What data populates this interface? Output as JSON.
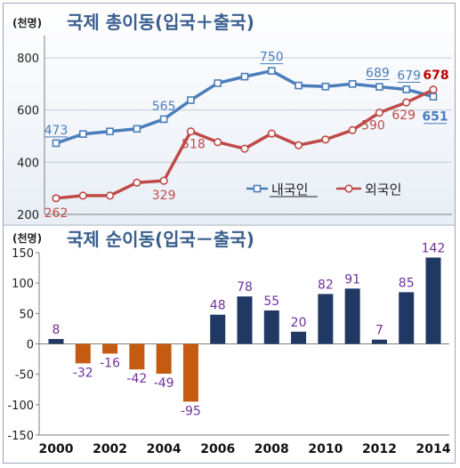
{
  "chart_data": [
    {
      "type": "line",
      "title": "국제 총이동(입국＋출국)",
      "unit_label": "(천명)",
      "x": [
        2000,
        2001,
        2002,
        2003,
        2004,
        2005,
        2006,
        2007,
        2008,
        2009,
        2010,
        2011,
        2012,
        2013,
        2014
      ],
      "ylim": [
        200,
        800
      ],
      "yticks": [
        200,
        400,
        600,
        800
      ],
      "grid": true,
      "legend_position": "lower-right",
      "series": [
        {
          "name": "내국인",
          "color": "#4a7ebb",
          "values": [
            473,
            508,
            518,
            528,
            565,
            638,
            703,
            728,
            750,
            694,
            690,
            700,
            689,
            679,
            651
          ],
          "labels": [
            {
              "index": 0,
              "text": "473"
            },
            {
              "index": 4,
              "text": "565"
            },
            {
              "index": 8,
              "text": "750"
            },
            {
              "index": 12,
              "text": "689"
            },
            {
              "index": 13,
              "text": "679"
            },
            {
              "index": 14,
              "text": "651"
            }
          ]
        },
        {
          "name": "외국인",
          "color": "#be4b48",
          "values": [
            262,
            272,
            272,
            322,
            329,
            518,
            477,
            452,
            510,
            465,
            487,
            523,
            590,
            629,
            678
          ],
          "labels": [
            {
              "index": 0,
              "text": "262"
            },
            {
              "index": 4,
              "text": "329"
            },
            {
              "index": 5,
              "text": "518"
            },
            {
              "index": 12,
              "text": "590"
            },
            {
              "index": 13,
              "text": "629"
            },
            {
              "index": 14,
              "text": "678"
            }
          ]
        }
      ]
    },
    {
      "type": "bar",
      "title": "국제 순이동(입국－출국)",
      "unit_label": "(천명)",
      "categories": [
        2000,
        2001,
        2002,
        2003,
        2004,
        2005,
        2006,
        2007,
        2008,
        2009,
        2010,
        2011,
        2012,
        2013,
        2014
      ],
      "values": [
        8,
        -32,
        -16,
        -42,
        -49,
        -95,
        48,
        78,
        55,
        20,
        82,
        91,
        7,
        85,
        142
      ],
      "ylim": [
        -150,
        150
      ],
      "yticks": [
        150,
        100,
        50,
        0,
        -50,
        -100,
        -150
      ],
      "xticks": [
        "2000",
        "2002",
        "2004",
        "2006",
        "2008",
        "2010",
        "2012",
        "2014"
      ],
      "positive_color": "#1f3864",
      "negative_color": "#c55a11",
      "label_color": "#7030a0"
    }
  ]
}
